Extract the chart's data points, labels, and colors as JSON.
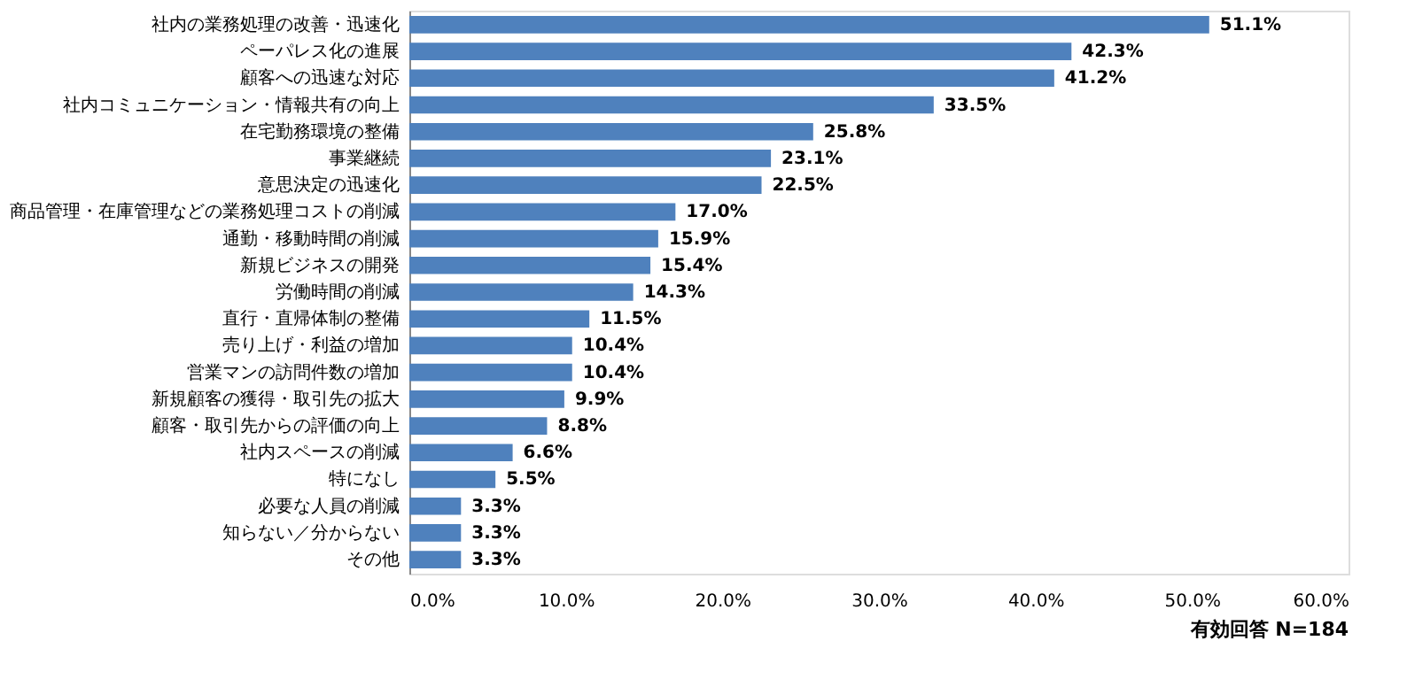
{
  "chart_data": {
    "type": "bar",
    "orientation": "horizontal",
    "categories": [
      "社内の業務処理の改善・迅速化",
      "ペーパレス化の進展",
      "顧客への迅速な対応",
      "社内コミュニケーション・情報共有の向上",
      "在宅勤務環境の整備",
      "事業継続",
      "意思決定の迅速化",
      "商品管理・在庫管理などの業務処理コストの削減",
      "通勤・移動時間の削減",
      "新規ビジネスの開発",
      "労働時間の削減",
      "直行・直帰体制の整備",
      "売り上げ・利益の増加",
      "営業マンの訪問件数の増加",
      "新規顧客の獲得・取引先の拡大",
      "顧客・取引先からの評価の向上",
      "社内スペースの削減",
      "特になし",
      "必要な人員の削減",
      "知らない／分からない",
      "その他"
    ],
    "values": [
      51.1,
      42.3,
      41.2,
      33.5,
      25.8,
      23.1,
      22.5,
      17.0,
      15.9,
      15.4,
      14.3,
      11.5,
      10.4,
      10.4,
      9.9,
      8.8,
      6.6,
      5.5,
      3.3,
      3.3,
      3.3
    ],
    "value_labels": [
      "51.1%",
      "42.3%",
      "41.2%",
      "33.5%",
      "25.8%",
      "23.1%",
      "22.5%",
      "17.0%",
      "15.9%",
      "15.4%",
      "14.3%",
      "11.5%",
      "10.4%",
      "10.4%",
      "9.9%",
      "8.8%",
      "6.6%",
      "5.5%",
      "3.3%",
      "3.3%",
      "3.3%"
    ],
    "color": "#4f81bd",
    "xlim": [
      0,
      60
    ],
    "xticks": [
      {
        "value": 0,
        "label": "0.0%"
      },
      {
        "value": 10,
        "label": "10.0%"
      },
      {
        "value": 20,
        "label": "20.0%"
      },
      {
        "value": 30,
        "label": "30.0%"
      },
      {
        "value": 40,
        "label": "40.0%"
      },
      {
        "value": 50,
        "label": "50.0%"
      },
      {
        "value": 60,
        "label": "60.0%"
      }
    ],
    "grid": false,
    "annotations": [
      "有効回答 N=184"
    ]
  }
}
